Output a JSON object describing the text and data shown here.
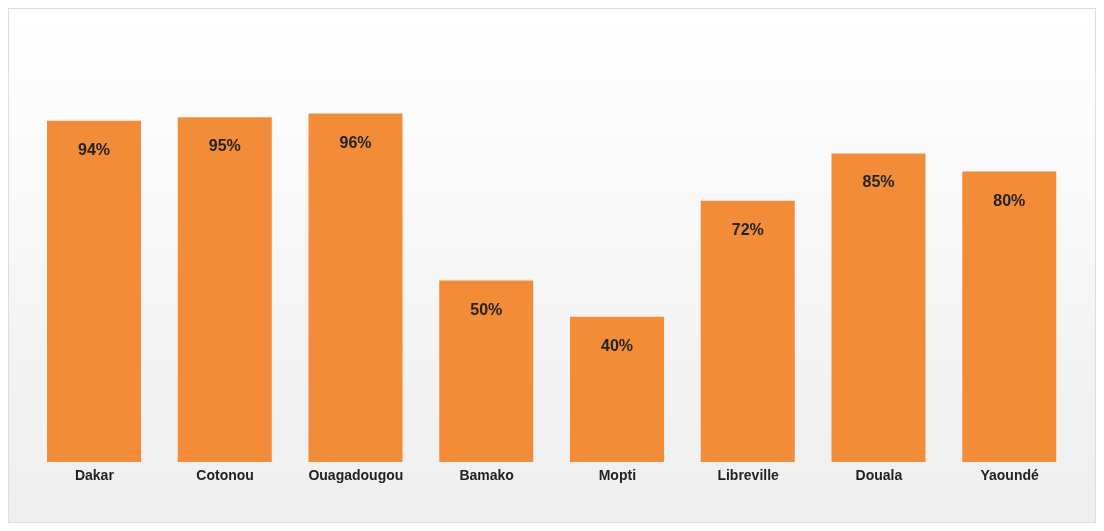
{
  "chart_data": {
    "type": "bar",
    "categories": [
      "Dakar",
      "Cotonou",
      "Ouagadougou",
      "Bamako",
      "Mopti",
      "Libreville",
      "Douala",
      "Yaoundé"
    ],
    "values": [
      94,
      95,
      96,
      50,
      40,
      72,
      85,
      80
    ],
    "value_labels": [
      "94%",
      "95%",
      "96%",
      "50%",
      "40%",
      "72%",
      "85%",
      "80%"
    ],
    "color": "#f28c38",
    "grid": false,
    "legend": false
  }
}
